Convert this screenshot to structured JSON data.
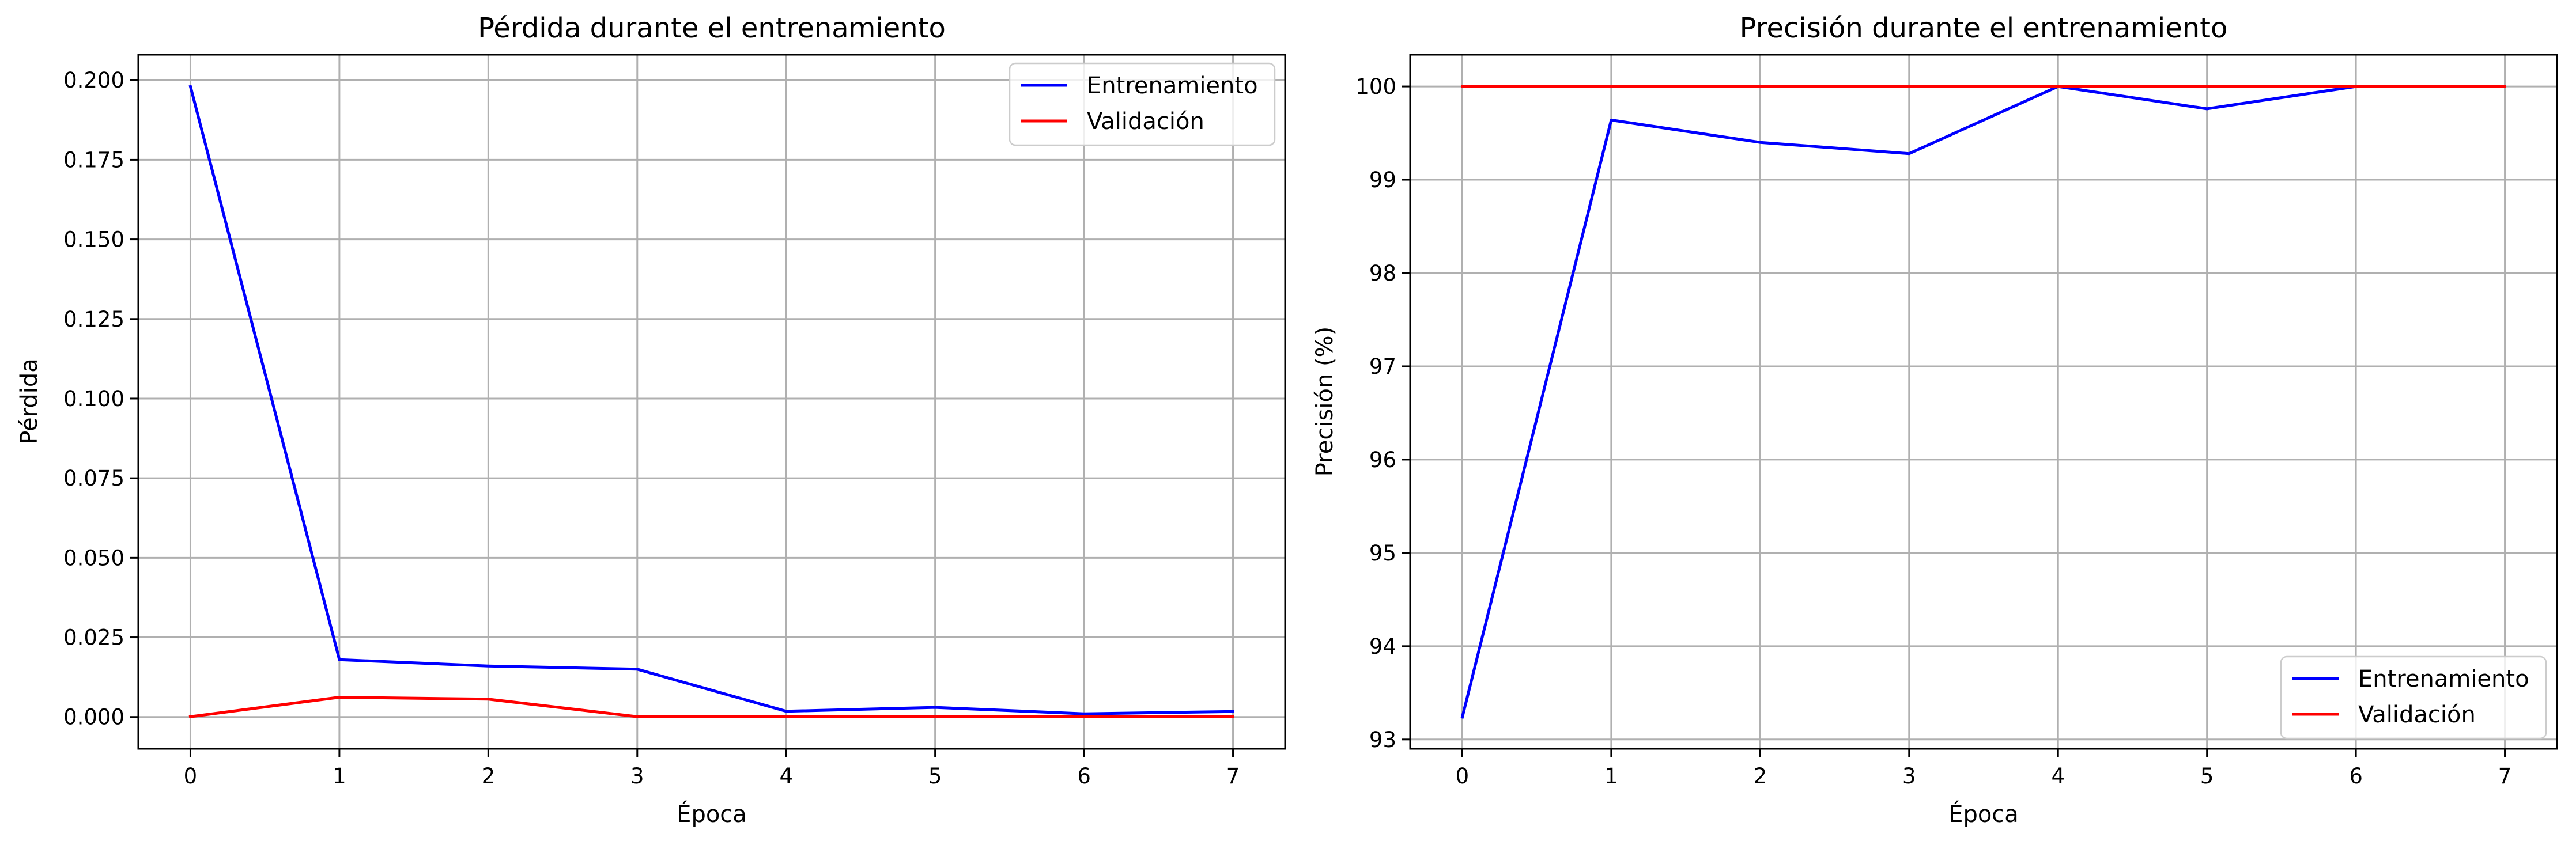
{
  "chart_data": [
    {
      "type": "line",
      "title": "Pérdida durante el entrenamiento",
      "xlabel": "Época",
      "ylabel": "Pérdida",
      "x": [
        0,
        1,
        2,
        3,
        4,
        5,
        6,
        7
      ],
      "xlim": [
        -0.35,
        7.35
      ],
      "ylim": [
        -0.01,
        0.208
      ],
      "xticks": [
        0,
        1,
        2,
        3,
        4,
        5,
        6,
        7
      ],
      "xtick_labels": [
        "0",
        "1",
        "2",
        "3",
        "4",
        "5",
        "6",
        "7"
      ],
      "yticks": [
        0,
        0.025,
        0.05,
        0.075,
        0.1,
        0.125,
        0.15,
        0.175,
        0.2
      ],
      "ytick_labels": [
        "0.000",
        "0.025",
        "0.050",
        "0.075",
        "0.100",
        "0.125",
        "0.150",
        "0.175",
        "0.200"
      ],
      "grid": true,
      "legend_position": "upper right",
      "series": [
        {
          "name": "Entrenamiento",
          "color": "#0000ff",
          "values": [
            0.198,
            0.018,
            0.016,
            0.015,
            0.0018,
            0.003,
            0.001,
            0.0017
          ]
        },
        {
          "name": "Validación",
          "color": "#ff0000",
          "values": [
            0.0001,
            0.0062,
            0.0056,
            0.0001,
            0.0001,
            0.0001,
            0.0002,
            0.0002
          ]
        }
      ]
    },
    {
      "type": "line",
      "title": "Precisión durante el entrenamiento",
      "xlabel": "Época",
      "ylabel": "Precisión (%)",
      "x": [
        0,
        1,
        2,
        3,
        4,
        5,
        6,
        7
      ],
      "xlim": [
        -0.35,
        7.35
      ],
      "ylim": [
        92.9,
        100.34
      ],
      "xticks": [
        0,
        1,
        2,
        3,
        4,
        5,
        6,
        7
      ],
      "xtick_labels": [
        "0",
        "1",
        "2",
        "3",
        "4",
        "5",
        "6",
        "7"
      ],
      "yticks": [
        93,
        94,
        95,
        96,
        97,
        98,
        99,
        100
      ],
      "ytick_labels": [
        "93",
        "94",
        "95",
        "96",
        "97",
        "98",
        "99",
        "100"
      ],
      "grid": true,
      "legend_position": "lower right",
      "series": [
        {
          "name": "Entrenamiento",
          "color": "#0000ff",
          "values": [
            93.24,
            99.64,
            99.4,
            99.28,
            100.0,
            99.76,
            100.0,
            100.0
          ]
        },
        {
          "name": "Validación",
          "color": "#ff0000",
          "values": [
            100.0,
            100.0,
            100.0,
            100.0,
            100.0,
            100.0,
            100.0,
            100.0
          ]
        }
      ]
    }
  ]
}
